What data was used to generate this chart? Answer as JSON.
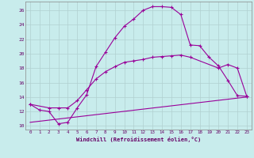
{
  "xlabel": "Windchill (Refroidissement éolien,°C)",
  "background_color": "#c8ecec",
  "line_color": "#990099",
  "grid_color": "#b0d0d0",
  "x_ticks": [
    0,
    1,
    2,
    3,
    4,
    5,
    6,
    7,
    8,
    9,
    10,
    11,
    12,
    13,
    14,
    15,
    16,
    17,
    18,
    19,
    20,
    21,
    22,
    23
  ],
  "y_ticks": [
    10,
    12,
    14,
    16,
    18,
    20,
    22,
    24,
    26
  ],
  "ylim": [
    9.5,
    27.2
  ],
  "xlim": [
    -0.5,
    23.5
  ],
  "curve1_x": [
    0,
    1,
    2,
    3,
    4,
    5,
    6,
    7,
    8,
    9,
    10,
    11,
    12,
    13,
    14,
    15,
    16,
    17,
    18,
    19,
    20,
    21,
    22,
    23
  ],
  "curve1_y": [
    13.0,
    12.2,
    12.0,
    10.3,
    10.5,
    12.5,
    14.3,
    18.2,
    20.2,
    22.2,
    23.8,
    24.8,
    26.0,
    26.5,
    26.5,
    26.4,
    25.4,
    21.2,
    21.1,
    19.5,
    18.3,
    16.3,
    14.2,
    14.1
  ],
  "curve2_x": [
    0,
    2,
    3,
    4,
    5,
    6,
    7,
    8,
    9,
    10,
    11,
    12,
    13,
    14,
    15,
    16,
    17,
    20,
    21,
    22,
    23
  ],
  "curve2_y": [
    13.0,
    12.5,
    12.5,
    12.5,
    13.5,
    15.0,
    16.5,
    17.5,
    18.2,
    18.8,
    19.0,
    19.2,
    19.5,
    19.6,
    19.7,
    19.8,
    19.5,
    18.0,
    18.5,
    18.0,
    14.1
  ],
  "curve3_x": [
    0,
    23
  ],
  "curve3_y": [
    10.5,
    14.0
  ]
}
